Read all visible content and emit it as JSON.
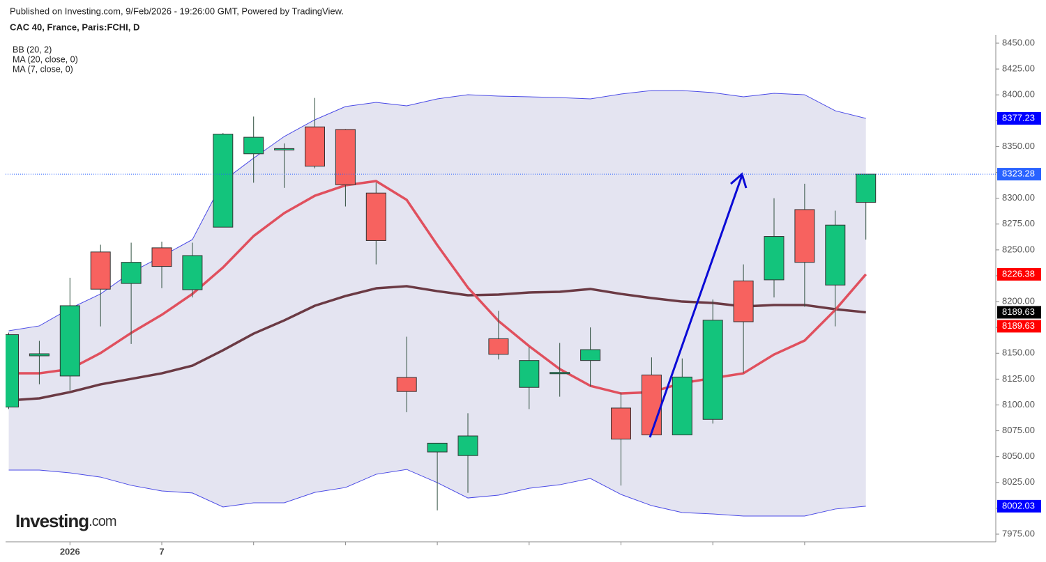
{
  "chart_data": {
    "type": "candlestick",
    "subtitle": "Published on Investing.com, 9/Feb/2026 - 19:26:00 GMT, Powered by TradingView.",
    "title": "CAC 40, France, Paris:FCHI, D",
    "categories": [
      null,
      null,
      "2026",
      null,
      null,
      "7",
      null,
      null,
      null,
      null,
      null,
      null,
      null,
      null,
      null,
      null,
      null,
      null,
      null,
      null,
      null,
      null,
      null,
      null,
      null,
      null,
      null,
      null,
      null
    ],
    "candles": {
      "up_color": "#13c47c",
      "down_color": "#f7625f",
      "open": [
        8098,
        8147.5,
        8128,
        8248,
        8217.5,
        8252,
        8211.5,
        8272,
        8343,
        8347,
        8369,
        8366.5,
        8305,
        8126.6,
        8054.5,
        8051,
        8164,
        8117,
        8131,
        8143,
        8097,
        8129,
        8071,
        8086,
        8220,
        8221,
        8289,
        8216,
        8296
      ],
      "high": [
        8170,
        8162,
        8223,
        8255,
        8257,
        8258,
        8257,
        8363,
        8379,
        8353,
        8397,
        8367,
        8315,
        8166,
        8063,
        8092,
        8191,
        8156,
        8160,
        8175,
        8112,
        8146,
        8145,
        8202,
        8236,
        8300,
        8314,
        8288,
        8323.28
      ],
      "low": [
        8096,
        8120,
        8114,
        8176,
        8159,
        8213,
        8204,
        8272,
        8315,
        8310,
        8329,
        8292,
        8236,
        8093,
        7998,
        8015,
        8144,
        8096,
        8108,
        8118,
        8022,
        8071,
        8071,
        8082,
        8131,
        8204,
        8195,
        8176,
        8260
      ],
      "close": [
        8168,
        8149.5,
        8196,
        8212,
        8238,
        8234,
        8244.5,
        8362,
        8359,
        8348,
        8331,
        8313,
        8259,
        8113,
        8063,
        8070,
        8149,
        8143,
        8131.5,
        8153.5,
        8067,
        8071,
        8127,
        8182,
        8180.5,
        8263,
        8238,
        8274,
        8323.28
      ]
    },
    "bands": {
      "name": "BB (20, 2)",
      "color": "#4a4ae6",
      "fill": "#e4e4f1",
      "upper": [
        8171.7,
        8176.5,
        8193.3,
        8207.4,
        8228.3,
        8243.8,
        8260,
        8316.6,
        8338.8,
        8359.7,
        8375.9,
        8388.7,
        8392.7,
        8389.4,
        8396.1,
        8400.1,
        8398.8,
        8398.1,
        8397.4,
        8396.1,
        8400.8,
        8404.2,
        8404.2,
        8402.2,
        8398.1,
        8401.5,
        8400.1,
        8384.6,
        8377.23
      ],
      "lower": [
        8037,
        8037,
        8034.3,
        8030.2,
        8022.2,
        8016.8,
        8014.8,
        8001.3,
        8005.3,
        8005.3,
        8015.4,
        8020.1,
        8032.9,
        8037.6,
        8024.8,
        8010,
        8012.7,
        8019.4,
        8022.8,
        8028.9,
        8013.4,
        8002.6,
        7995.9,
        7994.5,
        7992.5,
        7992.5,
        7992.5,
        7999.3,
        8002.03
      ]
    },
    "series": [
      {
        "name": "MA (20, close, 0)",
        "color": "#6b3a44",
        "values": [
          8104.4,
          8106.4,
          8112.4,
          8119.9,
          8125.2,
          8130.6,
          8138,
          8152.9,
          8169,
          8181.8,
          8196,
          8205.4,
          8212.8,
          8214.9,
          8210.1,
          8206.1,
          8206.8,
          8208.8,
          8209.5,
          8212.2,
          8207.4,
          8203.4,
          8200,
          8198.7,
          8195.3,
          8196.7,
          8196.7,
          8192.6,
          8189.63
        ]
      },
      {
        "name": "MA (7, close, 0)",
        "color": "#e0505e",
        "values": [
          8130.6,
          8130.6,
          8134.7,
          8150.2,
          8169.7,
          8187.2,
          8207.4,
          8233,
          8263.4,
          8285.6,
          8302.4,
          8312.5,
          8316.6,
          8298.4,
          8254.6,
          8213.5,
          8181.2,
          8156.9,
          8134.7,
          8118.5,
          8111.1,
          8112.4,
          8121.2,
          8125.9,
          8130.6,
          8148.8,
          8162.3,
          8192,
          8226.38
        ]
      }
    ],
    "price_labels": [
      {
        "value": 8377.23,
        "color": "#0000ff"
      },
      {
        "value": 8323.28,
        "color": "#2962ff"
      },
      {
        "value": 8226.38,
        "color": "#ff0000"
      },
      {
        "value": 8189.63,
        "color": "#000000"
      },
      {
        "value": 8189.63,
        "color": "#ff0000"
      },
      {
        "value": 8002.03,
        "color": "#0000ff"
      }
    ],
    "ylim": [
      7975,
      8450
    ],
    "yticks": [
      {
        "value": 7975,
        "label": "7975.00"
      },
      {
        "value": 8000,
        "label": "8000.00"
      },
      {
        "value": 8025,
        "label": "8025.00"
      },
      {
        "value": 8050,
        "label": "8050.00"
      },
      {
        "value": 8075,
        "label": "8075.00"
      },
      {
        "value": 8100,
        "label": "8100.00"
      },
      {
        "value": 8125,
        "label": "8125.00"
      },
      {
        "value": 8150,
        "label": "8150.00"
      },
      {
        "value": 8175,
        "label": "8175.00"
      },
      {
        "value": 8200,
        "label": "8200.00"
      },
      {
        "value": 8225,
        "label": "8225.00"
      },
      {
        "value": 8250,
        "label": "8250.00"
      },
      {
        "value": 8275,
        "label": "8275.00"
      },
      {
        "value": 8300,
        "label": "8300.00"
      },
      {
        "value": 8325,
        "label": "8325.00"
      },
      {
        "value": 8350,
        "label": "8350.00"
      },
      {
        "value": 8375,
        "label": "8375.00"
      },
      {
        "value": 8400,
        "label": "8400.00"
      },
      {
        "value": 8425,
        "label": "8425.00"
      },
      {
        "value": 8450,
        "label": "8450.00"
      }
    ],
    "watermark": [
      "Investing",
      ".com"
    ]
  }
}
